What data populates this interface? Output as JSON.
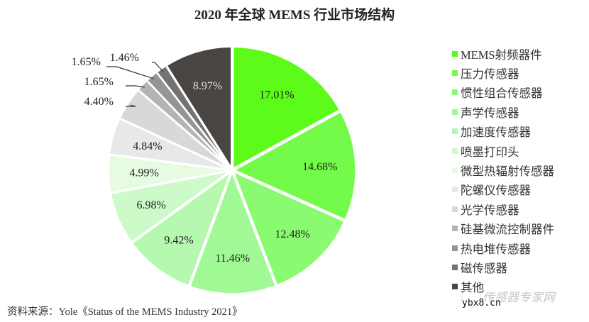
{
  "title": "2020 年全球 MEMS 行业市场结构",
  "source": "资料来源：Yole《Status of the MEMS Industry 2021》",
  "watermark": {
    "text": "传感器专家网",
    "url": "ybx8.cn"
  },
  "chart_data": {
    "type": "pie",
    "title": "2020 年全球 MEMS 行业市场结构",
    "legend_position": "right",
    "categories": [
      "MEMS射频器件",
      "压力传感器",
      "惯性组合传感器",
      "声学传感器",
      "加速度传感器",
      "喷墨打印头",
      "微型热辐射传感器",
      "陀螺仪传感器",
      "光学传感器",
      "硅基微流控制器件",
      "热电堆传感器",
      "磁传感器",
      "其他"
    ],
    "values": [
      17.01,
      14.68,
      12.48,
      11.46,
      9.42,
      6.98,
      4.99,
      4.84,
      4.4,
      1.65,
      1.65,
      1.46,
      8.97
    ],
    "labels": [
      "17.01%",
      "14.68%",
      "12.48%",
      "11.46%",
      "9.42%",
      "6.98%",
      "4.99%",
      "4.84%",
      "4.40%",
      "1.65%",
      "1.65%",
      "1.46%",
      "8.97%"
    ],
    "colors": [
      "#5cfb1a",
      "#74fb4a",
      "#8afa71",
      "#a0f994",
      "#b6f8b0",
      "#ccfac8",
      "#e6fbe2",
      "#e8e8e8",
      "#d8d8d8",
      "#b4b4b4",
      "#959595",
      "#737373",
      "#484543"
    ],
    "start_angle_deg": 0,
    "direction": "clockwise"
  }
}
